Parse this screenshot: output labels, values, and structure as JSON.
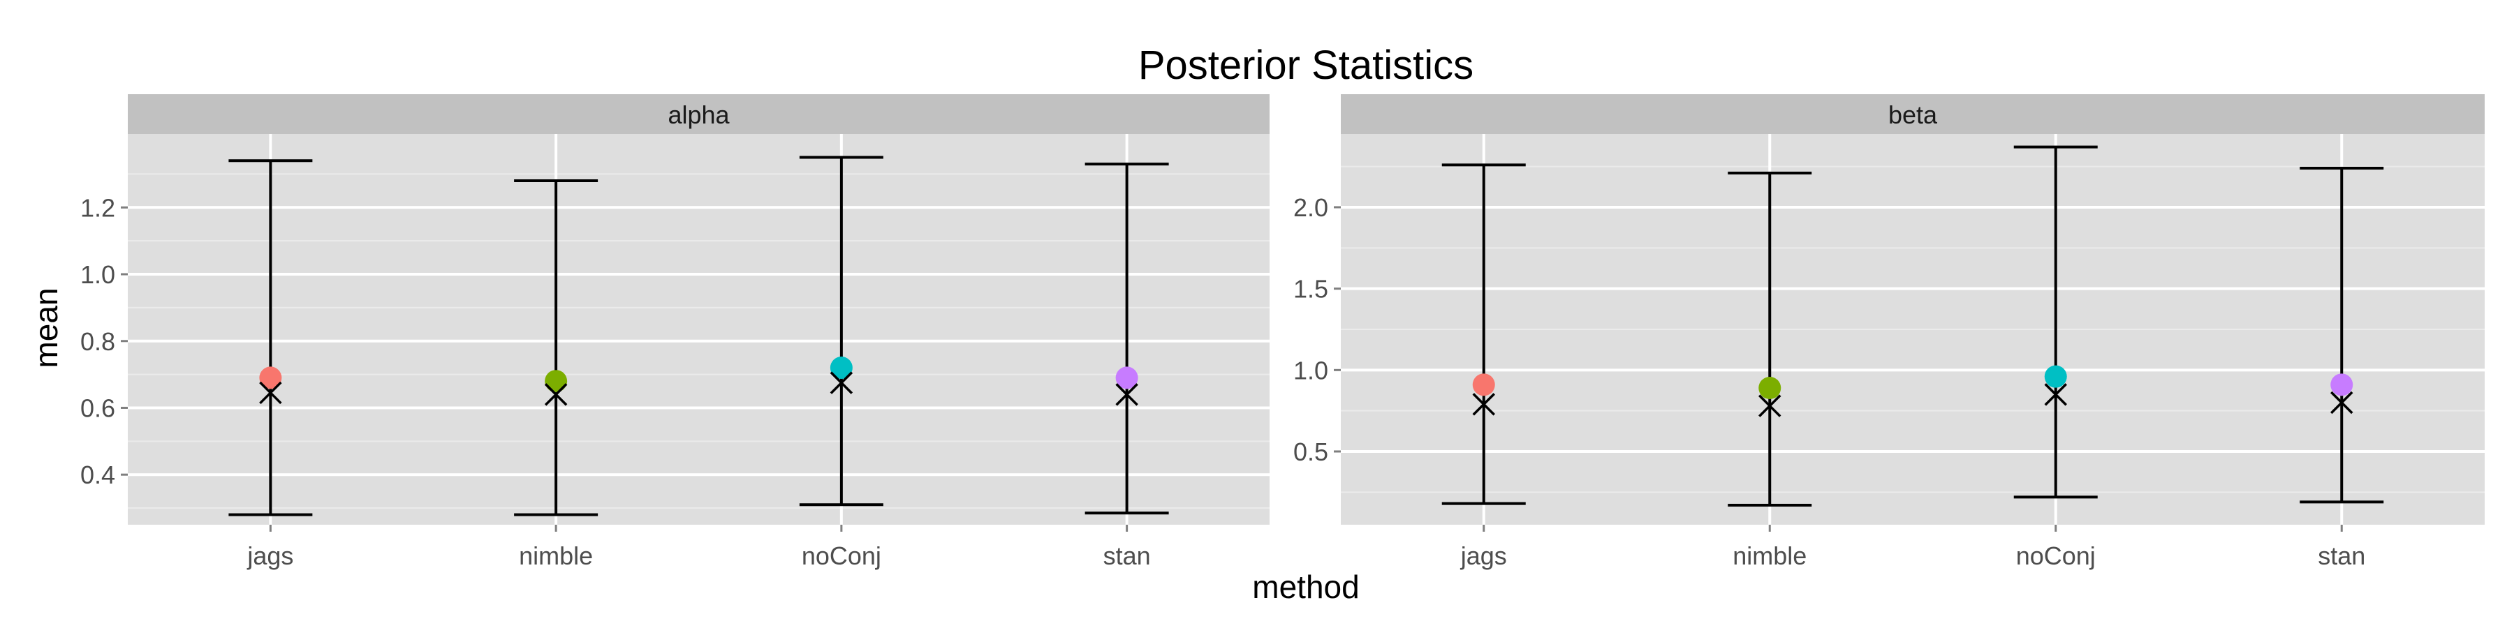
{
  "chart_data": {
    "type": "scatter",
    "title": "Posterior Statistics",
    "xlabel": "method",
    "ylabel": "mean",
    "categories": [
      "jags",
      "nimble",
      "noConj",
      "stan"
    ],
    "colors": {
      "jags": "#F8766D",
      "nimble": "#7CAE00",
      "noConj": "#00BFC4",
      "stan": "#C77CFF"
    },
    "panel_background": "#DEDEDE",
    "strip_background": "#C1C1C1",
    "grid": true,
    "legend": "none",
    "panels": [
      {
        "strip": "alpha",
        "ylim": [
          0.25,
          1.42
        ],
        "ticks": [
          0.4,
          0.6,
          0.8,
          1.0,
          1.2
        ],
        "tick_labels": [
          "0.4",
          "0.6",
          "0.8",
          "1.0",
          "1.2"
        ],
        "mean": [
          0.69,
          0.68,
          0.72,
          0.69
        ],
        "median": [
          0.645,
          0.64,
          0.675,
          0.64
        ],
        "lower": [
          0.28,
          0.28,
          0.31,
          0.285
        ],
        "upper": [
          1.34,
          1.28,
          1.35,
          1.33
        ]
      },
      {
        "strip": "beta",
        "ylim": [
          0.05,
          2.45
        ],
        "ticks": [
          0.5,
          1.0,
          1.5,
          2.0
        ],
        "tick_labels": [
          "0.5",
          "1.0",
          "1.5",
          "2.0"
        ],
        "mean": [
          0.91,
          0.89,
          0.96,
          0.91
        ],
        "median": [
          0.79,
          0.78,
          0.85,
          0.8
        ],
        "lower": [
          0.18,
          0.17,
          0.22,
          0.19
        ],
        "upper": [
          2.26,
          2.21,
          2.37,
          2.24
        ]
      }
    ]
  }
}
